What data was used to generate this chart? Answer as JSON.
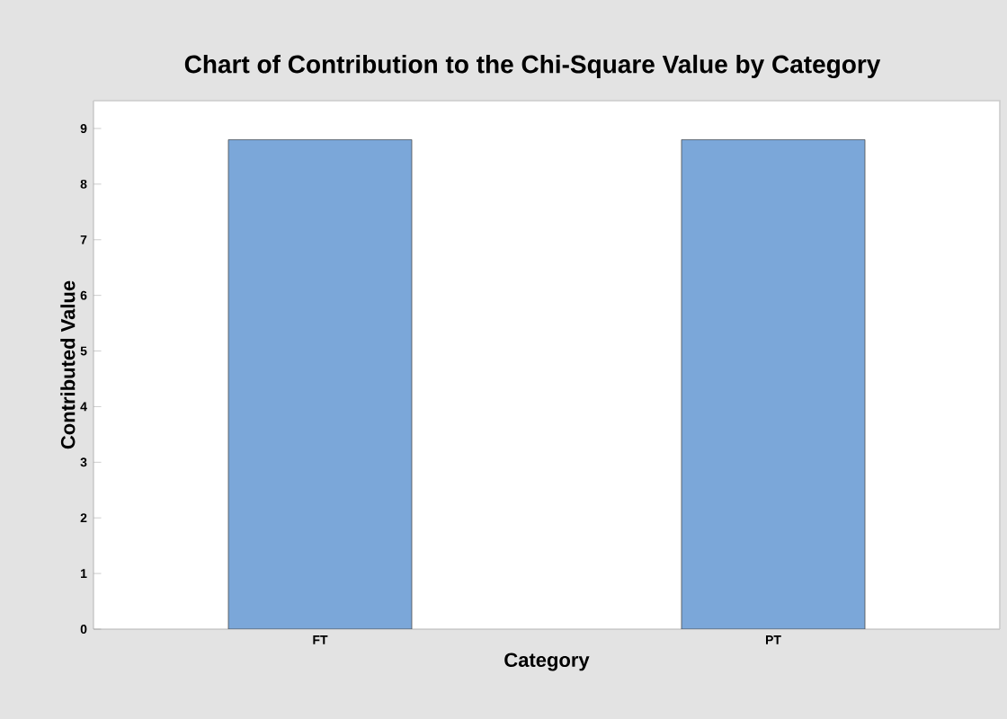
{
  "chart_data": {
    "type": "bar",
    "title": "Chart of Contribution to the Chi-Square Value by Category",
    "xlabel": "Category",
    "ylabel": "Contributed Value",
    "categories": [
      "FT",
      "PT"
    ],
    "values": [
      8.8,
      8.8
    ],
    "color": "#7ba7d9",
    "ylim": [
      0,
      9.5
    ],
    "yticks": [
      0,
      1,
      2,
      3,
      4,
      5,
      6,
      7,
      8,
      9
    ],
    "grid": false
  }
}
